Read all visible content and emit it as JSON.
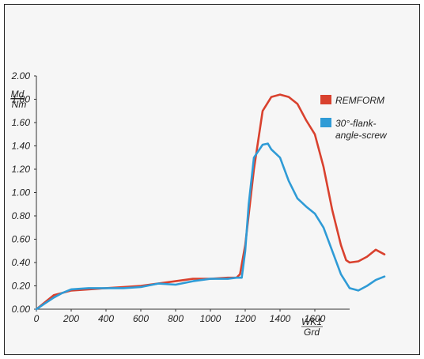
{
  "chart_data": {
    "type": "line",
    "xlim": [
      0,
      2000
    ],
    "ylim": [
      0,
      2.0
    ],
    "x_ticks": [
      "0",
      "200",
      "400",
      "600",
      "800",
      "1000",
      "1200",
      "1400",
      "1600"
    ],
    "y_ticks": [
      "0.00",
      "0.20",
      "0.40",
      "0.60",
      "0.80",
      "1.00",
      "1.20",
      "1.40",
      "1.60",
      "1.80",
      "2.00"
    ],
    "x_unit": {
      "name": "WK1",
      "unit": "Grd"
    },
    "y_unit": {
      "name": "Md",
      "unit": "Nm"
    },
    "legend_position": "top-right",
    "series": [
      {
        "name": "REMFORM",
        "color": "#d9412e",
        "x": [
          0,
          50,
          100,
          150,
          200,
          300,
          400,
          500,
          600,
          700,
          800,
          900,
          1000,
          1100,
          1150,
          1170,
          1200,
          1250,
          1300,
          1350,
          1400,
          1450,
          1500,
          1550,
          1600,
          1650,
          1700,
          1750,
          1780,
          1800,
          1850,
          1900,
          1950,
          2000
        ],
        "y": [
          0.0,
          0.06,
          0.12,
          0.14,
          0.16,
          0.17,
          0.18,
          0.19,
          0.2,
          0.22,
          0.24,
          0.26,
          0.26,
          0.27,
          0.27,
          0.3,
          0.55,
          1.2,
          1.7,
          1.82,
          1.84,
          1.82,
          1.76,
          1.62,
          1.5,
          1.22,
          0.85,
          0.55,
          0.42,
          0.4,
          0.41,
          0.45,
          0.51,
          0.47
        ]
      },
      {
        "name": "30°-flank-angle-screw",
        "color": "#2f9bd6",
        "x": [
          0,
          50,
          100,
          150,
          200,
          300,
          400,
          500,
          600,
          700,
          800,
          900,
          1000,
          1100,
          1150,
          1180,
          1200,
          1220,
          1250,
          1300,
          1330,
          1350,
          1400,
          1450,
          1500,
          1550,
          1600,
          1650,
          1700,
          1750,
          1800,
          1850,
          1900,
          1950,
          2000
        ],
        "y": [
          0.0,
          0.05,
          0.1,
          0.14,
          0.17,
          0.18,
          0.18,
          0.18,
          0.19,
          0.22,
          0.21,
          0.24,
          0.26,
          0.26,
          0.27,
          0.27,
          0.5,
          0.9,
          1.3,
          1.41,
          1.42,
          1.37,
          1.3,
          1.1,
          0.95,
          0.88,
          0.82,
          0.7,
          0.5,
          0.3,
          0.18,
          0.16,
          0.2,
          0.25,
          0.28
        ]
      }
    ]
  }
}
